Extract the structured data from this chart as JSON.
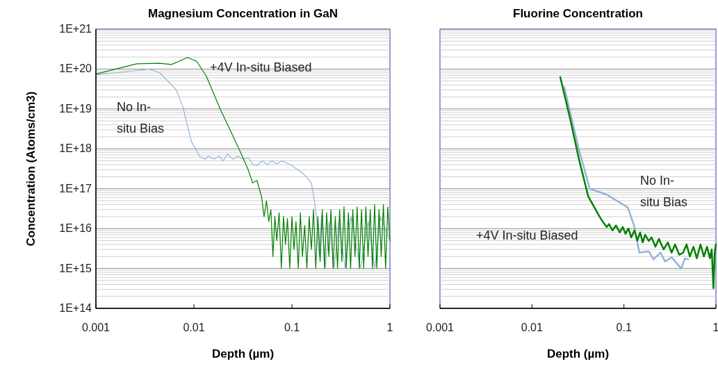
{
  "chart_data": [
    {
      "type": "line",
      "title": "Magnesium Concentration in GaN",
      "xlabel": "Depth (µm)",
      "ylabel": "Concentration (Atoms/cm3)",
      "log": "xy",
      "grid": "y",
      "xlim": [
        0.001,
        1
      ],
      "xticks": [
        0.001,
        0.01,
        0.1,
        1
      ],
      "ylim": [
        100000000000000.0,
        1e+21
      ],
      "yticks": [
        {
          "value": 100000000000000.0,
          "label": "1E+14"
        },
        {
          "value": 1000000000000000.0,
          "label": "1E+15"
        },
        {
          "value": 1e+16,
          "label": "1E+16"
        },
        {
          "value": 1e+17,
          "label": "1E+17"
        },
        {
          "value": 1e+18,
          "label": "1E+18"
        },
        {
          "value": 1e+19,
          "label": "1E+19"
        },
        {
          "value": 1e+20,
          "label": "1E+20"
        },
        {
          "value": 1e+21,
          "label": "1E+21"
        }
      ],
      "series": [
        {
          "name": "No In-situ Bias",
          "color": "#95b3d7",
          "x": [
            0.001,
            0.002,
            0.0035,
            0.0045,
            0.0066,
            0.0077,
            0.0094,
            0.0114,
            0.013,
            0.014,
            0.016,
            0.018,
            0.02,
            0.022,
            0.025,
            0.028,
            0.032,
            0.036,
            0.04,
            0.044,
            0.05,
            0.056,
            0.062,
            0.07,
            0.078,
            0.089,
            0.1,
            0.11,
            0.123,
            0.14,
            0.158,
            0.17,
            0.18,
            0.19,
            0.2,
            0.22,
            0.24,
            0.27,
            0.3,
            0.35,
            0.4,
            0.5,
            0.6,
            0.7,
            0.8,
            1.0
          ],
          "values": [
            7.3e+19,
            8.5e+19,
            1e+20,
            8e+19,
            3e+19,
            1.15e+19,
            1.55e+18,
            6.5e+17,
            5.5e+17,
            6.5e+17,
            5.5e+17,
            6.5e+17,
            5e+17,
            7.5e+17,
            5.5e+17,
            6.5e+17,
            5.5e+17,
            6e+17,
            4e+17,
            3.8e+17,
            5e+17,
            4e+17,
            5e+17,
            4.2e+17,
            5e+17,
            4.4e+17,
            3.8e+17,
            3.2e+17,
            2.7e+17,
            2e+17,
            1.4e+17,
            4.8e+16,
            1.5e+16,
            2000000000000000.0,
            2e+16,
            1000000000000000.0,
            1.5e+16,
            1000000000000000.0,
            1.5e+16,
            1000000000000000.0,
            2e+16,
            1000000000000000.0,
            1.5e+16,
            1000000000000000.0,
            2e+16,
            5000000000000000.0
          ]
        },
        {
          "name": "+4V In-situ Biased",
          "color": "#008000",
          "x": [
            0.001,
            0.0026,
            0.0045,
            0.0059,
            0.0086,
            0.0107,
            0.0134,
            0.0185,
            0.024,
            0.03,
            0.0356,
            0.0397,
            0.044,
            0.049,
            0.052,
            0.055,
            0.058,
            0.061,
            0.064,
            0.067,
            0.07,
            0.074,
            0.078,
            0.082,
            0.086,
            0.09,
            0.095,
            0.1,
            0.105,
            0.11,
            0.116,
            0.122,
            0.128,
            0.135,
            0.142,
            0.15,
            0.158,
            0.166,
            0.175,
            0.184,
            0.194,
            0.204,
            0.215,
            0.226,
            0.238,
            0.25,
            0.263,
            0.277,
            0.292,
            0.307,
            0.323,
            0.34,
            0.358,
            0.377,
            0.397,
            0.418,
            0.44,
            0.463,
            0.487,
            0.513,
            0.54,
            0.568,
            0.598,
            0.63,
            0.663,
            0.698,
            0.735,
            0.774,
            0.815,
            0.858,
            0.903,
            0.95,
            1.0
          ],
          "values": [
            7.5e+19,
            1.35e+20,
            1.4e+20,
            1.3e+20,
            1.95e+20,
            1.55e+20,
            6.6e+19,
            1e+19,
            2.6e+18,
            8e+17,
            3.1e+17,
            1.4e+17,
            1.6e+17,
            6.3e+16,
            2e+16,
            5e+16,
            1.5e+16,
            3e+16,
            2000000000000000.0,
            2e+16,
            5000000000000000.0,
            2.5e+16,
            1000000000000000.0,
            2e+16,
            4000000000000000.0,
            1.8e+16,
            1000000000000000.0,
            2e+16,
            3000000000000000.0,
            1.5e+16,
            1000000000000000.0,
            2.5e+16,
            2000000000000000.0,
            1.2e+16,
            1000000000000000.0,
            2e+16,
            3000000000000000.0,
            3e+16,
            1000000000000000.0,
            2e+16,
            1500000000000000.0,
            3e+16,
            1000000000000000.0,
            2.5e+16,
            2000000000000000.0,
            3e+16,
            1000000000000000.0,
            2e+16,
            1000000000000000.0,
            3e+16,
            1500000000000000.0,
            3.5e+16,
            1000000000000000.0,
            2.5e+16,
            1000000000000000.0,
            3e+16,
            2000000000000000.0,
            3.5e+16,
            1000000000000000.0,
            3e+16,
            1000000000000000.0,
            3.5e+16,
            2000000000000000.0,
            3e+16,
            1000000000000000.0,
            4e+16,
            1000000000000000.0,
            3e+16,
            2000000000000000.0,
            4e+16,
            1000000000000000.0,
            3.5e+16,
            5000000000000000.0
          ]
        }
      ]
    },
    {
      "type": "line",
      "title": "Fluorine Concentration",
      "xlabel": "Depth (µm)",
      "log": "xy",
      "grid": "y",
      "tick_labels": "x",
      "xlim": [
        0.001,
        1
      ],
      "xticks": [
        0.001,
        0.01,
        0.1,
        1
      ],
      "ylim": [
        100000000000000.0,
        1e+21
      ],
      "yticks": [
        {
          "value": 100000000000000.0,
          "label": null
        },
        {
          "value": 1000000000000000.0,
          "label": null
        },
        {
          "value": 1e+16,
          "label": null
        },
        {
          "value": 1e+17,
          "label": null
        },
        {
          "value": 1e+18,
          "label": null
        },
        {
          "value": 1e+19,
          "label": null
        },
        {
          "value": 1e+20,
          "label": null
        },
        {
          "value": 1e+21,
          "label": null
        }
      ],
      "series": [
        {
          "name": "No In-situ Bias",
          "color": "#95b3d7",
          "x": [
            0.0224,
            0.0326,
            0.0425,
            0.065,
            0.11,
            0.128,
            0.147,
            0.186,
            0.21,
            0.25,
            0.28,
            0.33,
            0.42,
            0.46,
            0.5
          ],
          "values": [
            3.6e+19,
            9e+17,
            1e+17,
            7.1e+16,
            3.4e+16,
            1.25e+16,
            2500000000000000.0,
            2700000000000000.0,
            1700000000000000.0,
            2500000000000000.0,
            1500000000000000.0,
            1900000000000000.0,
            1000000000000000.0,
            1800000000000000.0,
            1700000000000000.0
          ]
        },
        {
          "name": "+4V In-situ Biased",
          "color": "#008000",
          "x": [
            0.0203,
            0.0259,
            0.0326,
            0.041,
            0.055,
            0.06,
            0.065,
            0.069,
            0.075,
            0.082,
            0.09,
            0.097,
            0.104,
            0.112,
            0.12,
            0.13,
            0.14,
            0.15,
            0.16,
            0.17,
            0.186,
            0.2,
            0.22,
            0.24,
            0.27,
            0.3,
            0.33,
            0.36,
            0.4,
            0.44,
            0.48,
            0.52,
            0.57,
            0.62,
            0.68,
            0.74,
            0.8,
            0.86,
            0.9,
            0.94,
            0.97,
            1.0
          ],
          "values": [
            6.3e+19,
            5.9e+18,
            5.2e+17,
            6.3e+16,
            1.9e+16,
            1.4e+16,
            1.1e+16,
            1.3e+16,
            9000000000000000.0,
            1.2e+16,
            8000000000000000.0,
            1.1e+16,
            7400000000000000.0,
            1e+16,
            6000000000000000.0,
            9000000000000000.0,
            5000000000000000.0,
            8000000000000000.0,
            4500000000000000.0,
            7000000000000000.0,
            4900000000000000.0,
            6000000000000000.0,
            3500000000000000.0,
            5500000000000000.0,
            3000000000000000.0,
            4500000000000000.0,
            2500000000000000.0,
            4000000000000000.0,
            2200000000000000.0,
            2500000000000000.0,
            4000000000000000.0,
            2000000000000000.0,
            3500000000000000.0,
            1800000000000000.0,
            4000000000000000.0,
            2000000000000000.0,
            3500000000000000.0,
            1800000000000000.0,
            3000000000000000.0,
            320000000000000.0,
            2500000000000000.0,
            4000000000000000.0
          ]
        }
      ]
    }
  ]
}
